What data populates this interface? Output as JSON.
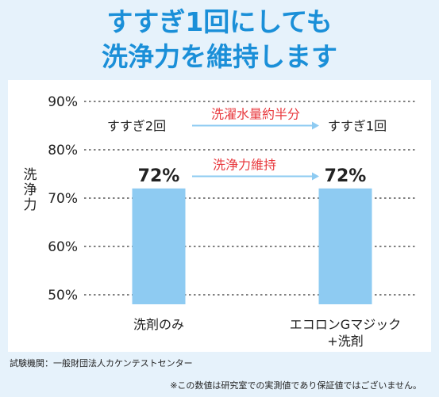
{
  "headline": {
    "line1": "すすぎ1回にしても",
    "line2": "洗浄力を維持します"
  },
  "chart_data": {
    "type": "bar",
    "ylabel": "洗浄力",
    "ylim": [
      50,
      90
    ],
    "yticks": [
      50,
      60,
      70,
      80,
      90
    ],
    "ytick_labels": [
      "50%",
      "60%",
      "70%",
      "80%",
      "90%"
    ],
    "grid": "dashed-horizontal",
    "categories": [
      "洗剤のみ",
      "エコロンGマジック\n+洗剤"
    ],
    "values": [
      72,
      72
    ],
    "value_labels": [
      "72%",
      "72%"
    ],
    "rinse_labels": [
      "すすぎ2回",
      "すすぎ1回"
    ],
    "annotations": [
      {
        "text": "洗濯水量約半分",
        "level": 85
      },
      {
        "text": "洗浄力維持",
        "level": 74.5
      }
    ],
    "colors": {
      "bar": "#8ecbf2",
      "arrow": "#8ecbf2",
      "annotation_text": "#e8383d"
    }
  },
  "footer": {
    "testing_org": "試験機関：一般財団法人カケンテストセンター",
    "disclaimer": "※この数値は研究室での実測値であり保証値ではございません。"
  }
}
